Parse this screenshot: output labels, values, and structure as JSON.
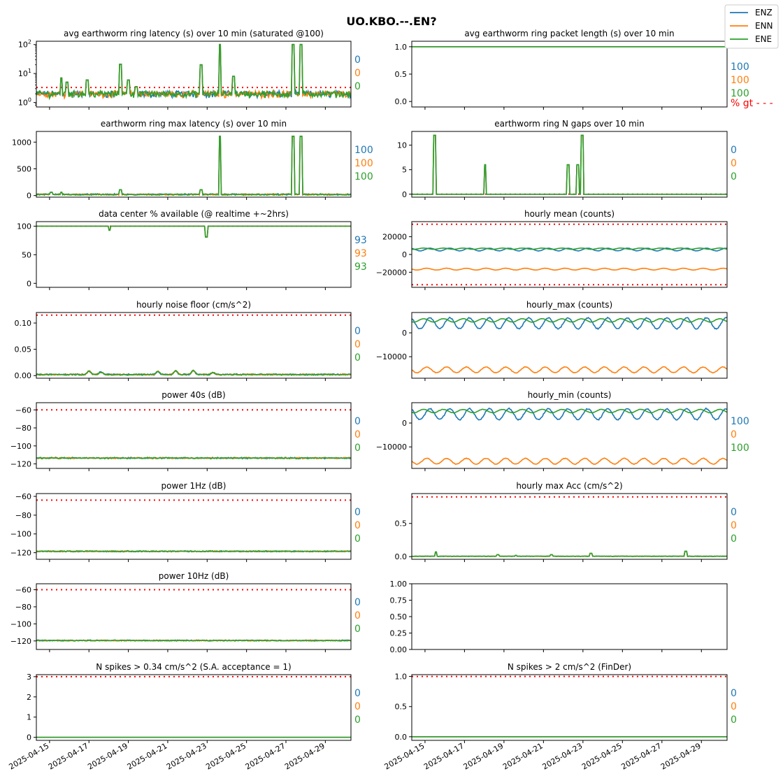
{
  "title": "UO.KBO.--.EN?",
  "legend": {
    "placement": "top-right",
    "entries": [
      {
        "name": "ENZ",
        "color": "#1f77b4"
      },
      {
        "name": "ENN",
        "color": "#ff7f0e"
      },
      {
        "name": "ENE",
        "color": "#2ca02c"
      }
    ]
  },
  "threshold_color": "#ff0000",
  "x_tick_labels": [
    "2025-04-15",
    "2025-04-17",
    "2025-04-19",
    "2025-04-21",
    "2025-04-23",
    "2025-04-25",
    "2025-04-27",
    "2025-04-29"
  ],
  "chart_data": [
    {
      "type": "line",
      "title": "avg earthworm ring latency (s)   over 10 min (saturated @100)",
      "yscale": "log",
      "ylim": [
        0.7,
        130
      ],
      "yticks": [
        {
          "v": 1,
          "base": "10",
          "exp": "0"
        },
        {
          "v": 10,
          "base": "10",
          "exp": "1"
        },
        {
          "v": 100,
          "base": "10",
          "exp": "2"
        }
      ],
      "threshold": 3.3,
      "base": [
        1.6,
        2.4
      ],
      "noise": 0.45,
      "spikes": {
        "ENE": [
          [
            0.6,
            7
          ],
          [
            0.9,
            5
          ],
          [
            1.9,
            6
          ],
          [
            3.6,
            21
          ],
          [
            4.0,
            6
          ],
          [
            4.4,
            3.5
          ],
          [
            7.7,
            20
          ],
          [
            8.65,
            100
          ],
          [
            9.35,
            8
          ],
          [
            12.35,
            100
          ],
          [
            12.75,
            100
          ]
        ]
      },
      "stats": [
        "0",
        "0",
        "0"
      ]
    },
    {
      "type": "line",
      "title": "avg earthworm ring packet length (s)   over 10 min",
      "ylim": [
        -0.1,
        1.1
      ],
      "yticks": [
        {
          "v": 0,
          "label": "0.0"
        },
        {
          "v": 0.5,
          "label": "0.5"
        },
        {
          "v": 1,
          "label": "1.0"
        }
      ],
      "constant": 1.0,
      "stats": [
        "100",
        "100",
        "100"
      ],
      "pct_label": "% gt - - -"
    },
    {
      "type": "line",
      "title": "earthworm ring max latency (s)   over 10 min",
      "ylim": [
        -30,
        1200
      ],
      "yticks": [
        {
          "v": 0,
          "label": "0"
        },
        {
          "v": 500,
          "label": "500"
        },
        {
          "v": 1000,
          "label": "1000"
        }
      ],
      "base": [
        10,
        30
      ],
      "noise": 12,
      "spikes": {
        "ENE": [
          [
            0.1,
            60
          ],
          [
            0.6,
            60
          ],
          [
            3.6,
            110
          ],
          [
            7.7,
            110
          ],
          [
            8.65,
            1110
          ],
          [
            12.35,
            1110
          ],
          [
            12.75,
            1110
          ]
        ]
      },
      "stats": [
        "100",
        "100",
        "100"
      ]
    },
    {
      "type": "line",
      "title": "earthworm ring N gaps   over 10 min",
      "ylim": [
        -0.6,
        12.8
      ],
      "yticks": [
        {
          "v": 0,
          "label": "0"
        },
        {
          "v": 5,
          "label": "5"
        },
        {
          "v": 10,
          "label": "10"
        }
      ],
      "threshold": 0,
      "base": [
        0,
        0
      ],
      "noise": 0,
      "spikes": {
        "ENE": [
          [
            0.5,
            12
          ],
          [
            3.05,
            6
          ],
          [
            7.25,
            6
          ],
          [
            7.75,
            6
          ],
          [
            7.95,
            12
          ]
        ]
      },
      "stats": [
        "0",
        "0",
        "0"
      ]
    },
    {
      "type": "line",
      "title": "data center % available (@ realtime +~2hrs)",
      "ylim": [
        -7,
        108
      ],
      "yticks": [
        {
          "v": 0,
          "label": "0"
        },
        {
          "v": 50,
          "label": "50"
        },
        {
          "v": 100,
          "label": "100"
        }
      ],
      "threshold": 100,
      "constant": 100,
      "dips": {
        "ENE": [
          [
            3.05,
            93
          ],
          [
            7.95,
            81
          ]
        ]
      },
      "stats": [
        "93",
        "93",
        "93"
      ]
    },
    {
      "type": "line",
      "title": "hourly mean (counts)",
      "ylim": [
        -37000,
        37000
      ],
      "yticks": [
        {
          "v": -20000,
          "label": "−20000"
        },
        {
          "v": 0,
          "label": "0"
        },
        {
          "v": 20000,
          "label": "20000"
        }
      ],
      "threshold_lines": [
        34000,
        -34000
      ],
      "series_levels": {
        "ENZ": [
          5600,
          1500
        ],
        "ENN": [
          -16500,
          1000
        ],
        "ENE": [
          6500,
          700
        ]
      },
      "stats": null
    },
    {
      "type": "line",
      "title": "hourly noise floor (cm/s^2)",
      "ylim": [
        -0.005,
        0.12
      ],
      "yticks": [
        {
          "v": 0,
          "label": "0.00"
        },
        {
          "v": 0.05,
          "label": "0.05"
        },
        {
          "v": 0.1,
          "label": "0.10"
        }
      ],
      "threshold": 0.115,
      "base": [
        0.001,
        0.003
      ],
      "noise": 0.001,
      "bumps": [
        [
          2.0,
          0.007
        ],
        [
          2.6,
          0.005
        ],
        [
          5.5,
          0.006
        ],
        [
          6.4,
          0.007
        ],
        [
          7.3,
          0.008
        ],
        [
          8.3,
          0.004
        ]
      ],
      "stats": [
        "0",
        "0",
        "0"
      ]
    },
    {
      "type": "line",
      "title": "hourly_max (counts)",
      "ylim": [
        -19000,
        8500
      ],
      "yticks": [
        {
          "v": -10000,
          "label": "−10000"
        },
        {
          "v": 0,
          "label": "0"
        }
      ],
      "series_levels": {
        "ENZ": [
          4000,
          2300
        ],
        "ENN": [
          -15500,
          1200
        ],
        "ENE": [
          5200,
          700
        ]
      },
      "stats": null
    },
    {
      "type": "line",
      "title": "power 40s (dB)",
      "ylim": [
        -125,
        -52
      ],
      "yticks": [
        {
          "v": -120,
          "label": "−120"
        },
        {
          "v": -100,
          "label": "−100"
        },
        {
          "v": -80,
          "label": "−80"
        },
        {
          "v": -60,
          "label": "−60"
        }
      ],
      "threshold": -60,
      "base": [
        -114,
        -113
      ],
      "noise": 0.8,
      "stats": [
        "0",
        "0",
        "0"
      ]
    },
    {
      "type": "line",
      "title": "hourly_min (counts)",
      "ylim": [
        -19000,
        8500
      ],
      "yticks": [
        {
          "v": -10000,
          "label": "−10000"
        },
        {
          "v": 0,
          "label": "0"
        }
      ],
      "series_levels": {
        "ENZ": [
          3700,
          2300
        ],
        "ENN": [
          -16000,
          1200
        ],
        "ENE": [
          5000,
          700
        ]
      },
      "stats": [
        "100",
        "0",
        "100"
      ]
    },
    {
      "type": "line",
      "title": "power 1Hz (dB)",
      "ylim": [
        -127,
        -57
      ],
      "yticks": [
        {
          "v": -120,
          "label": "−120"
        },
        {
          "v": -100,
          "label": "−100"
        },
        {
          "v": -80,
          "label": "−80"
        },
        {
          "v": -60,
          "label": "−60"
        }
      ],
      "threshold": -64,
      "base": [
        -119,
        -118
      ],
      "noise": 0.4,
      "stats": [
        "0",
        "0",
        "0"
      ]
    },
    {
      "type": "line",
      "title": "hourly max Acc (cm/s^2)",
      "ylim": [
        -0.04,
        0.95
      ],
      "yticks": [
        {
          "v": 0,
          "label": "0.0"
        },
        {
          "v": 0.5,
          "label": "0.5"
        }
      ],
      "threshold": 0.9,
      "base": [
        0.003,
        0.008
      ],
      "noise": 0.004,
      "spikes": {
        "ENE": [
          [
            0.55,
            0.07
          ],
          [
            3.7,
            0.03
          ],
          [
            4.6,
            0.02
          ],
          [
            6.4,
            0.03
          ],
          [
            8.4,
            0.05
          ],
          [
            13.2,
            0.08
          ]
        ]
      },
      "stats": [
        "0",
        "0",
        "0"
      ]
    },
    {
      "type": "line",
      "title": "power 10Hz (dB)",
      "ylim": [
        -130,
        -53
      ],
      "yticks": [
        {
          "v": -120,
          "label": "−120"
        },
        {
          "v": -100,
          "label": "−100"
        },
        {
          "v": -80,
          "label": "−80"
        },
        {
          "v": -60,
          "label": "−60"
        }
      ],
      "threshold": -60,
      "base": [
        -120,
        -119
      ],
      "noise": 0.4,
      "stats": [
        "0",
        "0",
        "0"
      ]
    },
    {
      "type": "empty",
      "title": "",
      "ylim": [
        0,
        1
      ],
      "yticks": [
        {
          "v": 0,
          "label": "0.00"
        },
        {
          "v": 0.25,
          "label": "0.25"
        },
        {
          "v": 0.5,
          "label": "0.50"
        },
        {
          "v": 0.75,
          "label": "0.75"
        },
        {
          "v": 1,
          "label": "1.00"
        }
      ],
      "stats": null
    },
    {
      "type": "line",
      "title": "N spikes > 0.34 cm/s^2 (S.A. acceptance = 1)",
      "ylim": [
        -0.15,
        3.1
      ],
      "yticks": [
        {
          "v": 0,
          "label": "0"
        },
        {
          "v": 1,
          "label": "1"
        },
        {
          "v": 2,
          "label": "2"
        },
        {
          "v": 3,
          "label": "3"
        }
      ],
      "threshold": 3,
      "constant": 0,
      "stats": [
        "0",
        "0",
        "0"
      ]
    },
    {
      "type": "line",
      "title": "N spikes > 2 cm/s^2 (FinDer)",
      "ylim": [
        -0.06,
        1.03
      ],
      "yticks": [
        {
          "v": 0,
          "label": "0.0"
        },
        {
          "v": 0.5,
          "label": "0.5"
        },
        {
          "v": 1,
          "label": "1.0"
        }
      ],
      "threshold": 1,
      "constant": 0,
      "stats": [
        "0",
        "0",
        "0"
      ]
    }
  ]
}
